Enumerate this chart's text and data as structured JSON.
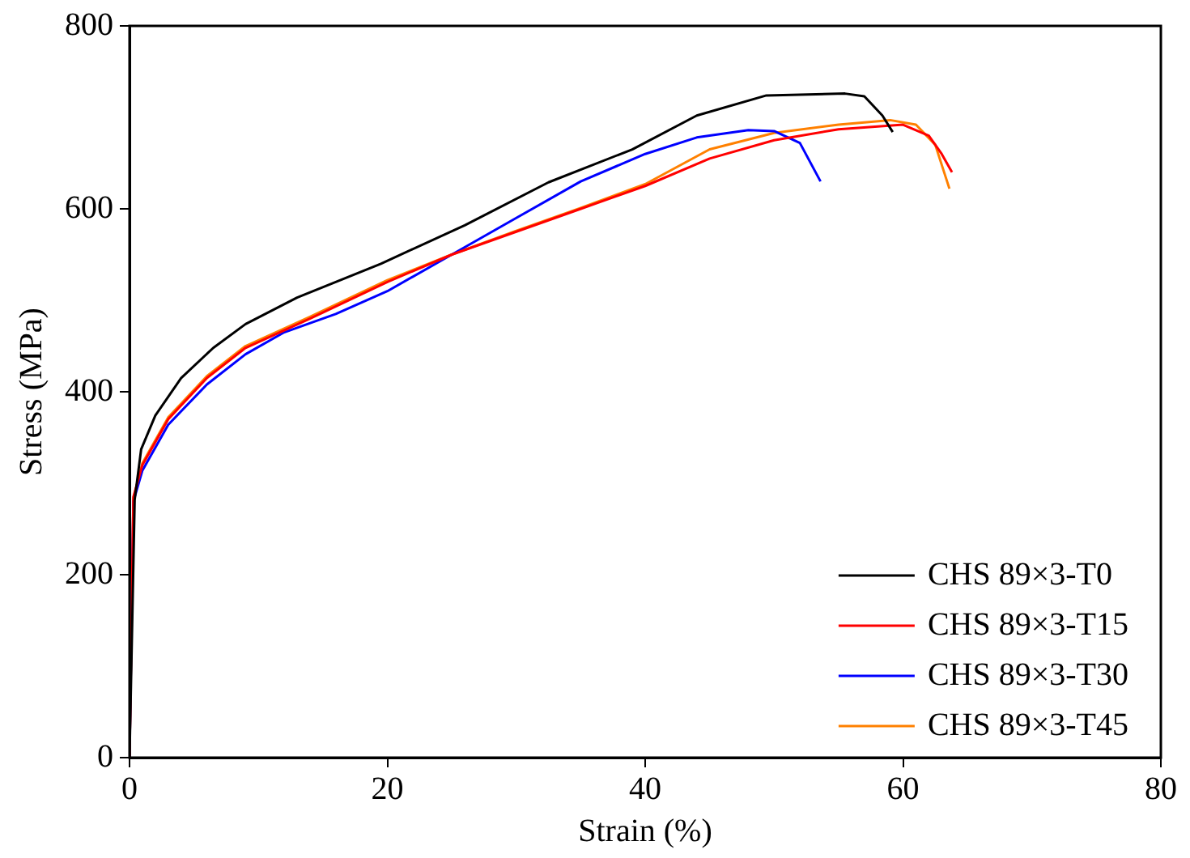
{
  "chart_data": {
    "type": "line",
    "xlabel": "Strain (%)",
    "ylabel": "Stress (MPa)",
    "xlim": [
      0,
      80
    ],
    "xticks": [
      0,
      20,
      40,
      60,
      80
    ],
    "ylim": [
      0,
      800
    ],
    "yticks": [
      0,
      200,
      400,
      600,
      800
    ],
    "grid": false,
    "legend": "bottom right",
    "marker": "none",
    "line_style": "solid",
    "series": [
      {
        "name": "CHS 89×3-T0",
        "color": "#000000",
        "x": [
          0,
          0.4,
          0.9,
          2,
          4,
          6.5,
          9,
          13,
          19.5,
          26,
          32.5,
          39,
          44,
          49.4,
          55.5,
          57,
          58.4,
          59.2
        ],
        "values": [
          0,
          282,
          337,
          374,
          415,
          448,
          474,
          503,
          540,
          582,
          629,
          665,
          702,
          724,
          726,
          723,
          702,
          684
        ]
      },
      {
        "name": "CHS 89×3-T15",
        "color": "#ff0000",
        "x": [
          0,
          0.3,
          1,
          3,
          6,
          9,
          14,
          20,
          25,
          30,
          35,
          40,
          45,
          50,
          55,
          60,
          62,
          63,
          63.8
        ],
        "values": [
          0,
          285,
          320,
          370,
          415,
          448,
          480,
          520,
          550,
          575,
          600,
          625,
          655,
          675,
          687,
          692,
          680,
          660,
          640
        ]
      },
      {
        "name": "CHS 89×3-T30",
        "color": "#0000ff",
        "x": [
          0,
          0.3,
          1,
          3,
          6,
          9,
          12,
          16,
          20,
          25,
          30,
          35,
          40,
          44,
          48,
          50,
          52,
          53.6
        ],
        "values": [
          0,
          280,
          314,
          364,
          408,
          441,
          465,
          485,
          510,
          550,
          590,
          630,
          660,
          678,
          686,
          685,
          672,
          630
        ]
      },
      {
        "name": "CHS 89×3-T45",
        "color": "#ff8000",
        "x": [
          0,
          0.3,
          1,
          3,
          6,
          9,
          14,
          20,
          25,
          30,
          35,
          40,
          45,
          50,
          55,
          59,
          61,
          62.5,
          63.6
        ],
        "values": [
          0,
          283,
          322,
          372,
          417,
          450,
          482,
          522,
          550,
          576,
          601,
          627,
          665,
          683,
          692,
          697,
          692,
          670,
          622
        ]
      }
    ]
  }
}
